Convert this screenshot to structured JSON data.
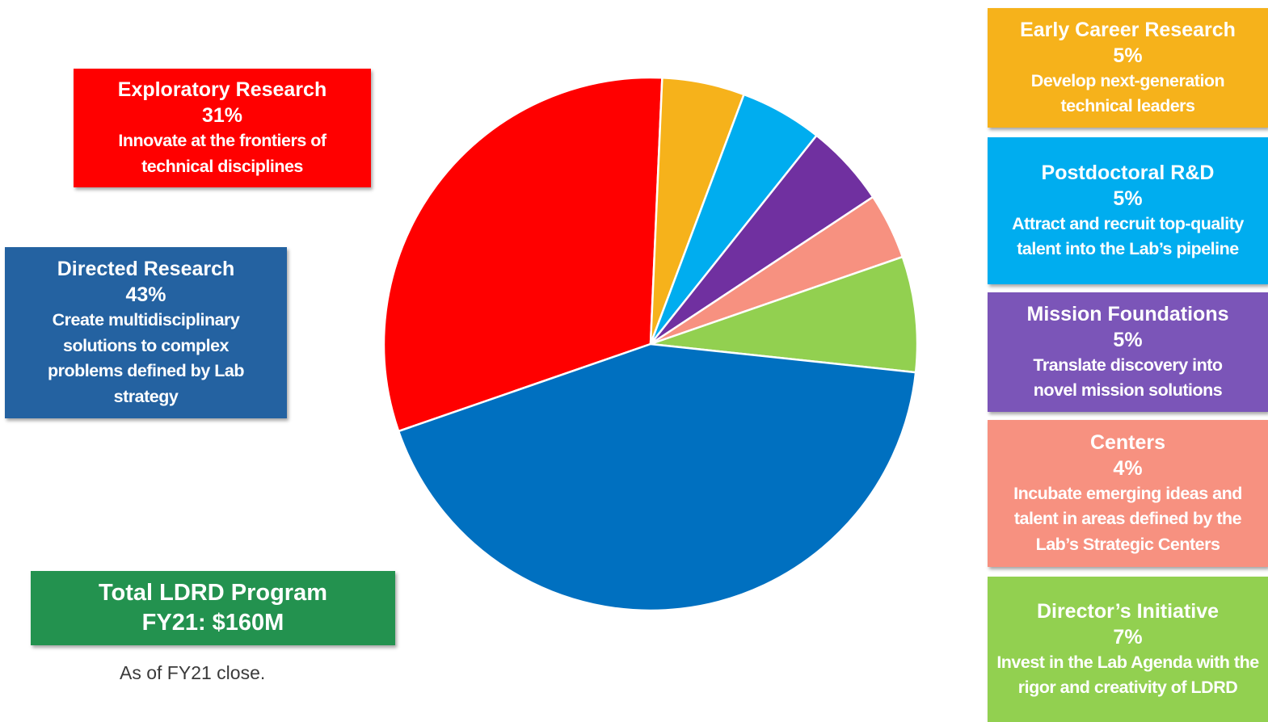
{
  "colors": {
    "exploratory": "#ff0000",
    "early_career": "#f6b21b",
    "postdoc": "#00adef",
    "mission": "#7030a0",
    "centers": "#f79180",
    "directors": "#92d050",
    "directed": "#0070c0",
    "total_box": "#23924f",
    "directed_box": "#2462a1",
    "mission_box": "#7b55b8"
  },
  "chart_data": {
    "type": "pie",
    "title": "",
    "slices": [
      {
        "label": "Exploratory Research",
        "value": 31,
        "color": "#ff0000"
      },
      {
        "label": "Early Career Research",
        "value": 5,
        "color": "#f6b21b"
      },
      {
        "label": "Postdoctoral R&D",
        "value": 5,
        "color": "#00adef"
      },
      {
        "label": "Mission Foundations",
        "value": 5,
        "color": "#7030a0"
      },
      {
        "label": "Centers",
        "value": 4,
        "color": "#f79180"
      },
      {
        "label": "Director’s Initiative",
        "value": 7,
        "color": "#92d050"
      },
      {
        "label": "Directed Research",
        "value": 43,
        "color": "#0070c0"
      }
    ],
    "legend": "boxes-left-and-right"
  },
  "categories": {
    "exploratory": {
      "name": "Exploratory Research",
      "pct": "31%",
      "desc": "Innovate at the frontiers of technical disciplines"
    },
    "directed": {
      "name": "Directed Research",
      "pct": "43%",
      "desc": "Create multidisciplinary solutions to complex problems defined by Lab strategy"
    },
    "early_career": {
      "name": "Early Career Research",
      "pct": "5%",
      "desc": "Develop next-generation technical leaders"
    },
    "postdoc": {
      "name": "Postdoctoral R&D",
      "pct": "5%",
      "desc": "Attract and recruit  top-quality talent into the Lab’s pipeline"
    },
    "mission": {
      "name": "Mission Foundations",
      "pct": "5%",
      "desc": "Translate discovery into novel mission solutions"
    },
    "centers": {
      "name": "Centers",
      "pct": "4%",
      "desc": "Incubate emerging ideas and talent in areas defined by the Lab’s Strategic Centers"
    },
    "directors": {
      "name": "Director’s Initiative",
      "pct": "7%",
      "desc": "Invest in the Lab Agenda with the rigor and creativity of LDRD"
    }
  },
  "total": {
    "line1": "Total LDRD Program",
    "line2": "FY21:  $160M"
  },
  "note": "As of FY21 close."
}
